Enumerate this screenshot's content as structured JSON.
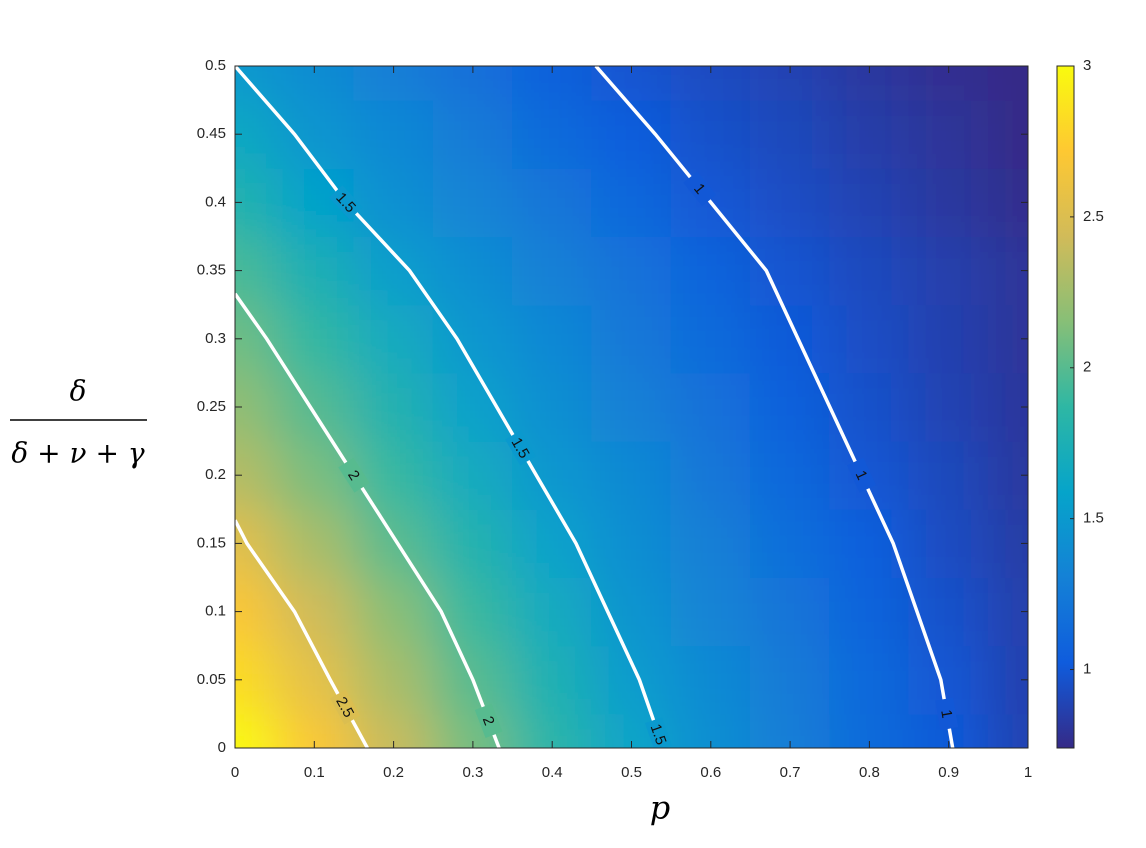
{
  "chart_data": {
    "type": "heatmap",
    "xlabel": "p",
    "ylabel_numerator": "δ",
    "ylabel_denominator": "δ + ν + γ",
    "xlim": [
      0,
      1
    ],
    "ylim": [
      0,
      0.5
    ],
    "xticks": [
      0,
      0.1,
      0.2,
      0.3,
      0.4,
      0.5,
      0.6,
      0.7,
      0.8,
      0.9,
      1
    ],
    "yticks": [
      0,
      0.05,
      0.1,
      0.15,
      0.2,
      0.25,
      0.3,
      0.35,
      0.4,
      0.45,
      0.5
    ],
    "x": [
      0,
      0.1,
      0.2,
      0.3,
      0.4,
      0.5,
      0.6,
      0.7,
      0.8,
      0.9,
      1
    ],
    "y": [
      0,
      0.05,
      0.1,
      0.15,
      0.2,
      0.25,
      0.3,
      0.35,
      0.4,
      0.45,
      0.5
    ],
    "z": [
      [
        3.0,
        2.7,
        2.4,
        2.1,
        1.84,
        1.6,
        1.42,
        1.28,
        1.14,
        1.01,
        0.88
      ],
      [
        2.83,
        2.56,
        2.28,
        2.0,
        1.76,
        1.52,
        1.38,
        1.25,
        1.12,
        0.99,
        0.87
      ],
      [
        2.7,
        2.43,
        2.16,
        1.9,
        1.67,
        1.46,
        1.33,
        1.21,
        1.08,
        0.96,
        0.86
      ],
      [
        2.54,
        2.28,
        2.01,
        1.79,
        1.57,
        1.41,
        1.29,
        1.16,
        1.04,
        0.93,
        0.84
      ],
      [
        2.33,
        2.11,
        1.89,
        1.67,
        1.48,
        1.37,
        1.23,
        1.11,
        0.99,
        0.91,
        0.82
      ],
      [
        2.2,
        1.99,
        1.78,
        1.56,
        1.42,
        1.3,
        1.18,
        1.06,
        0.96,
        0.88,
        0.81
      ],
      [
        2.08,
        1.88,
        1.67,
        1.48,
        1.36,
        1.24,
        1.13,
        1.01,
        0.94,
        0.87,
        0.8
      ],
      [
        1.96,
        1.75,
        1.54,
        1.41,
        1.3,
        1.19,
        1.08,
        0.98,
        0.92,
        0.86,
        0.8
      ],
      [
        1.8,
        1.58,
        1.43,
        1.33,
        1.22,
        1.11,
        1.0,
        0.94,
        0.88,
        0.82,
        0.76
      ],
      [
        1.65,
        1.47,
        1.36,
        1.25,
        1.14,
        1.03,
        0.96,
        0.91,
        0.85,
        0.8,
        0.74
      ],
      [
        1.5,
        1.39,
        1.28,
        1.17,
        1.06,
        0.98,
        0.93,
        0.88,
        0.82,
        0.77,
        0.72
      ]
    ],
    "clim": [
      0.74,
      3
    ],
    "colorbar_ticks": [
      1,
      1.5,
      2,
      2.5,
      3
    ],
    "colormap": [
      "#352a87",
      "#0f5cdd",
      "#1481d6",
      "#06a4ca",
      "#2eb7a4",
      "#87bf77",
      "#d1bb59",
      "#fec832",
      "#f9fb0e"
    ],
    "contour_color": "#ffffff",
    "contours": [
      {
        "level": 1,
        "x": [
          0.455,
          0.53,
          0.6,
          0.67,
          0.71,
          0.75,
          0.79,
          0.83,
          0.86,
          0.89,
          0.905
        ],
        "y": [
          0.5,
          0.45,
          0.4,
          0.35,
          0.3,
          0.25,
          0.2,
          0.15,
          0.1,
          0.05,
          0
        ]
      },
      {
        "level": 1.5,
        "x": [
          0,
          0.075,
          0.14,
          0.22,
          0.28,
          0.33,
          0.38,
          0.43,
          0.47,
          0.51,
          0.54
        ],
        "y": [
          0.5,
          0.45,
          0.4,
          0.35,
          0.3,
          0.25,
          0.2,
          0.15,
          0.1,
          0.05,
          0
        ]
      },
      {
        "level": 2,
        "x": [
          0,
          0.04,
          0.095,
          0.15,
          0.205,
          0.26,
          0.3,
          0.333
        ],
        "y": [
          0.333,
          0.3,
          0.25,
          0.2,
          0.15,
          0.1,
          0.05,
          0
        ]
      },
      {
        "level": 2.5,
        "x": [
          0,
          0.015,
          0.075,
          0.12,
          0.167
        ],
        "y": [
          0.167,
          0.15,
          0.1,
          0.05,
          0
        ]
      }
    ]
  }
}
